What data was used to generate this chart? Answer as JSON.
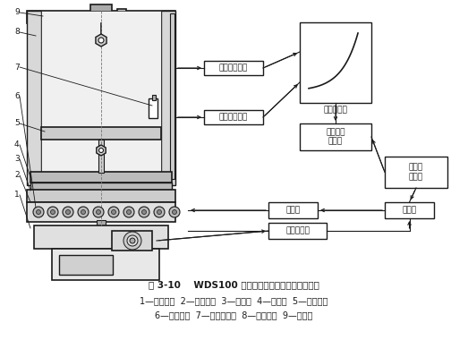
{
  "title_line1": "图 3-10    WDS100 型电子万能材料试验机结构原理",
  "title_line2": "1—主变速箱  2—传动齿轮  3—电动机  4—工作台  5—活动横架",
  "title_line3": "6—滚珠丝杠  7—位移传感器  8—力传感器  9—上横架",
  "bg_color": "#ffffff",
  "lc": "#1a1a1a",
  "gray1": "#cccccc",
  "gray2": "#aaaaaa",
  "gray3": "#888888",
  "gray4": "#666666",
  "gray5": "#e8e8e8"
}
